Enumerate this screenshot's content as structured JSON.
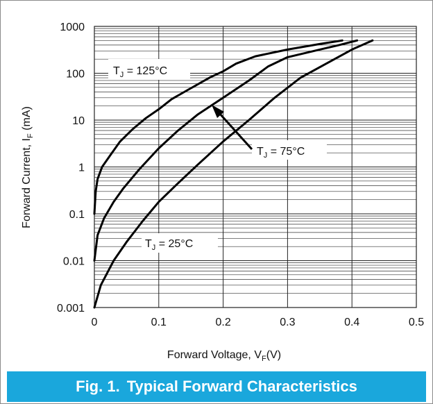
{
  "caption": {
    "number": "Fig. 1.",
    "title": "Typical Forward Characteristics"
  },
  "chart_data": {
    "type": "line",
    "title": "Typical Forward Characteristics",
    "xlabel": "Forward Voltage, VF(V)",
    "ylabel": "Forward Current, IF (mA)",
    "xlabel_parts": {
      "main": "Forward Voltage, V",
      "sub": "F",
      "tail": "(V)"
    },
    "ylabel_parts": {
      "main": "Forward Current, I",
      "sub": "F",
      "tail": " (mA)"
    },
    "xlim": [
      0,
      0.5
    ],
    "ylim": [
      0.001,
      1000
    ],
    "yscale": "log",
    "grid": true,
    "x_ticks": [
      "0",
      "0.1",
      "0.2",
      "0.3",
      "0.4",
      "0.5"
    ],
    "y_ticks": [
      "0.001",
      "0.01",
      "0.1",
      "1",
      "10",
      "100",
      "1000"
    ],
    "series": [
      {
        "name": "TJ = 125°C",
        "label_parts": {
          "t": "T",
          "sub": "J",
          "rest": " = 125°C"
        },
        "x": [
          0.0,
          0.002,
          0.005,
          0.012,
          0.025,
          0.04,
          0.06,
          0.08,
          0.1,
          0.12,
          0.15,
          0.18,
          0.2,
          0.22,
          0.25,
          0.3,
          0.35,
          0.385
        ],
        "y": [
          0.1,
          0.3,
          0.55,
          1.0,
          1.8,
          3.5,
          6.5,
          11,
          17,
          28,
          48,
          82,
          110,
          160,
          230,
          320,
          420,
          500
        ]
      },
      {
        "name": "TJ = 75°C",
        "label_parts": {
          "t": "T",
          "sub": "J",
          "rest": " = 75°C"
        },
        "x": [
          0.0,
          0.005,
          0.015,
          0.03,
          0.045,
          0.07,
          0.1,
          0.13,
          0.16,
          0.2,
          0.24,
          0.27,
          0.3,
          0.35,
          0.38,
          0.408
        ],
        "y": [
          0.01,
          0.035,
          0.08,
          0.18,
          0.35,
          0.9,
          2.5,
          6,
          13,
          30,
          70,
          140,
          220,
          320,
          400,
          500
        ]
      },
      {
        "name": "TJ = 25°C",
        "label_parts": {
          "t": "T",
          "sub": "J",
          "rest": " = 25°C"
        },
        "x": [
          0.0,
          0.01,
          0.03,
          0.05,
          0.075,
          0.1,
          0.13,
          0.16,
          0.2,
          0.24,
          0.28,
          0.32,
          0.36,
          0.4,
          0.432
        ],
        "y": [
          0.001,
          0.003,
          0.01,
          0.025,
          0.07,
          0.18,
          0.45,
          1.1,
          3.5,
          10,
          30,
          80,
          160,
          320,
          500
        ]
      }
    ]
  }
}
